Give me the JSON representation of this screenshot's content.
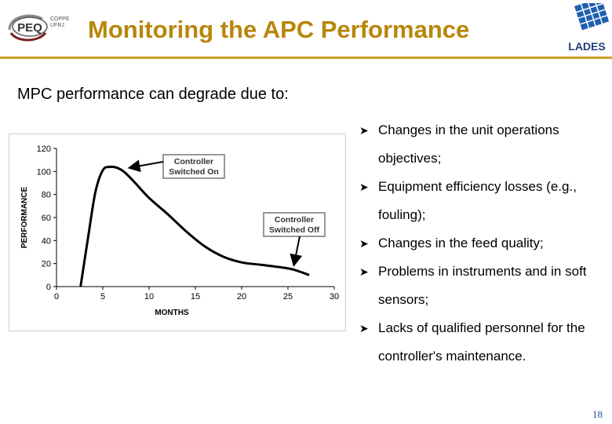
{
  "header": {
    "title": "Monitoring the APC Performance",
    "logo_left": {
      "name": "PEQ",
      "line1": "COPPE",
      "line2": "UFRJ"
    },
    "logo_right": {
      "name": "LADES"
    }
  },
  "intro": "MPC performance can degrade due to:",
  "bullets": [
    "Changes in the unit operations objectives;",
    "Equipment efficiency losses (e.g., fouling);",
    "Changes in the feed quality;",
    "Problems in instruments and in soft sensors;",
    "Lacks of qualified personnel for the controller's maintenance."
  ],
  "page_number": "18",
  "chart_data": {
    "type": "line",
    "xlabel": "MONTHS",
    "ylabel": "PERFORMANCE",
    "xlim": [
      0,
      30
    ],
    "ylim": [
      0,
      120
    ],
    "x_ticks": [
      "0",
      "5",
      "10",
      "15",
      "20",
      "25",
      "30"
    ],
    "y_ticks": [
      "0",
      "20",
      "40",
      "60",
      "80",
      "100",
      "120"
    ],
    "grid": false,
    "series": [
      {
        "x": [
          2.6,
          3.4,
          4.2,
          5.0,
          5.8,
          6.6,
          7.4,
          8.5,
          10,
          12,
          14,
          16,
          18,
          20,
          22,
          24,
          25.5,
          27.3
        ],
        "y": [
          0,
          42,
          82,
          101,
          104,
          103,
          99,
          90,
          77,
          63,
          48,
          35,
          26,
          21,
          19,
          17,
          15,
          10
        ]
      }
    ],
    "annotations": [
      {
        "text_line1": "Controller",
        "text_line2": "Switched On",
        "point": [
          7.5,
          102
        ]
      },
      {
        "text_line1": "Controller",
        "text_line2": "Switched Off",
        "point": [
          25.5,
          17
        ]
      }
    ]
  }
}
